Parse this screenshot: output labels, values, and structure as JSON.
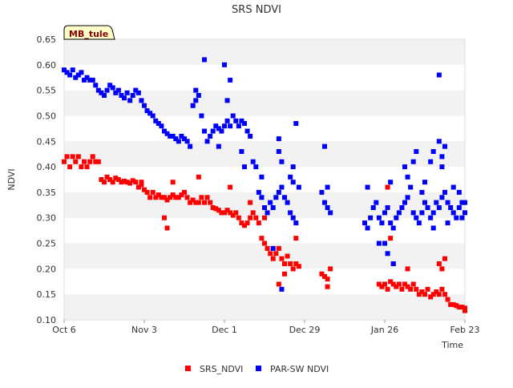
{
  "chart_data": {
    "type": "scatter",
    "title": "SRS NDVI",
    "badge": "MB_tule",
    "xlabel": "Time",
    "ylabel": "NDVI",
    "x_unit": "days since Oct 6",
    "xlim": [
      0,
      140
    ],
    "ylim": [
      0.1,
      0.65
    ],
    "yticks": [
      0.1,
      0.15,
      0.2,
      0.25,
      0.3,
      0.35,
      0.4,
      0.45,
      0.5,
      0.55,
      0.6,
      0.65
    ],
    "xticks": [
      {
        "value": 0,
        "label": "Oct 6"
      },
      {
        "value": 28,
        "label": "Nov 3"
      },
      {
        "value": 56,
        "label": "Dec 1"
      },
      {
        "value": 84,
        "label": "Dec 29"
      },
      {
        "value": 112,
        "label": "Jan 26"
      },
      {
        "value": 140,
        "label": "Feb 23"
      }
    ],
    "grid": "alternating horizontal bands",
    "legend_position": "bottom-center",
    "series": [
      {
        "name": "SRS_NDVI",
        "color": "#ff0000",
        "points": [
          [
            0,
            0.41
          ],
          [
            1,
            0.42
          ],
          [
            2,
            0.4
          ],
          [
            3,
            0.42
          ],
          [
            4,
            0.41
          ],
          [
            5,
            0.42
          ],
          [
            6,
            0.4
          ],
          [
            7,
            0.41
          ],
          [
            8,
            0.4
          ],
          [
            9,
            0.41
          ],
          [
            10,
            0.42
          ],
          [
            11,
            0.41
          ],
          [
            12,
            0.41
          ],
          [
            13,
            0.375
          ],
          [
            14,
            0.37
          ],
          [
            15,
            0.38
          ],
          [
            16,
            0.375
          ],
          [
            17,
            0.37
          ],
          [
            18,
            0.378
          ],
          [
            19,
            0.375
          ],
          [
            20,
            0.37
          ],
          [
            21,
            0.372
          ],
          [
            22,
            0.37
          ],
          [
            23,
            0.368
          ],
          [
            24,
            0.373
          ],
          [
            25,
            0.37
          ],
          [
            26,
            0.36
          ],
          [
            27,
            0.365
          ],
          [
            28,
            0.355
          ],
          [
            29,
            0.35
          ],
          [
            30,
            0.34
          ],
          [
            31,
            0.35
          ],
          [
            32,
            0.34
          ],
          [
            33,
            0.345
          ],
          [
            34,
            0.34
          ],
          [
            35,
            0.34
          ],
          [
            36,
            0.335
          ],
          [
            37,
            0.34
          ],
          [
            38,
            0.345
          ],
          [
            39,
            0.34
          ],
          [
            40,
            0.34
          ],
          [
            41,
            0.345
          ],
          [
            42,
            0.35
          ],
          [
            43,
            0.34
          ],
          [
            44,
            0.33
          ],
          [
            45,
            0.335
          ],
          [
            46,
            0.33
          ],
          [
            47,
            0.33
          ],
          [
            48,
            0.34
          ],
          [
            49,
            0.33
          ],
          [
            50,
            0.34
          ],
          [
            51,
            0.33
          ],
          [
            52,
            0.32
          ],
          [
            53,
            0.318
          ],
          [
            54,
            0.315
          ],
          [
            55,
            0.31
          ],
          [
            56,
            0.31
          ],
          [
            57,
            0.315
          ],
          [
            58,
            0.31
          ],
          [
            59,
            0.305
          ],
          [
            60,
            0.31
          ],
          [
            61,
            0.3
          ],
          [
            62,
            0.29
          ],
          [
            63,
            0.285
          ],
          [
            64,
            0.29
          ],
          [
            65,
            0.3
          ],
          [
            66,
            0.31
          ],
          [
            67,
            0.3
          ],
          [
            68,
            0.29
          ],
          [
            69,
            0.26
          ],
          [
            70,
            0.25
          ],
          [
            71,
            0.24
          ],
          [
            72,
            0.23
          ],
          [
            73,
            0.22
          ],
          [
            74,
            0.23
          ],
          [
            75,
            0.24
          ],
          [
            76,
            0.22
          ],
          [
            77,
            0.21
          ],
          [
            78,
            0.225
          ],
          [
            79,
            0.21
          ],
          [
            80,
            0.2
          ],
          [
            81,
            0.21
          ],
          [
            82,
            0.205
          ],
          [
            90,
            0.19
          ],
          [
            91,
            0.185
          ],
          [
            92,
            0.18
          ],
          [
            93,
            0.2
          ],
          [
            110,
            0.17
          ],
          [
            111,
            0.165
          ],
          [
            112,
            0.17
          ],
          [
            113,
            0.16
          ],
          [
            114,
            0.175
          ],
          [
            115,
            0.17
          ],
          [
            116,
            0.165
          ],
          [
            117,
            0.17
          ],
          [
            118,
            0.16
          ],
          [
            119,
            0.17
          ],
          [
            120,
            0.165
          ],
          [
            121,
            0.16
          ],
          [
            122,
            0.17
          ],
          [
            123,
            0.16
          ],
          [
            124,
            0.15
          ],
          [
            125,
            0.155
          ],
          [
            126,
            0.15
          ],
          [
            127,
            0.16
          ],
          [
            128,
            0.145
          ],
          [
            129,
            0.15
          ],
          [
            130,
            0.155
          ],
          [
            131,
            0.15
          ],
          [
            132,
            0.16
          ],
          [
            133,
            0.15
          ],
          [
            134,
            0.14
          ],
          [
            135,
            0.13
          ],
          [
            136,
            0.13
          ],
          [
            137,
            0.128
          ],
          [
            138,
            0.125
          ],
          [
            139,
            0.125
          ],
          [
            140,
            0.123
          ],
          [
            47,
            0.38
          ],
          [
            27,
            0.37
          ],
          [
            58,
            0.36
          ],
          [
            70,
            0.3
          ],
          [
            114,
            0.26
          ],
          [
            115,
            0.21
          ],
          [
            113,
            0.36
          ],
          [
            65,
            0.33
          ],
          [
            38,
            0.37
          ],
          [
            120,
            0.2
          ],
          [
            132,
            0.2
          ],
          [
            133,
            0.22
          ],
          [
            131,
            0.21
          ],
          [
            92,
            0.165
          ],
          [
            81,
            0.26
          ],
          [
            36,
            0.28
          ],
          [
            35,
            0.3
          ],
          [
            77,
            0.19
          ],
          [
            75,
            0.17
          ],
          [
            140,
            0.118
          ]
        ]
      },
      {
        "name": "PAR-SW NDVI",
        "color": "#0000ff",
        "points": [
          [
            0,
            0.59
          ],
          [
            1,
            0.585
          ],
          [
            2,
            0.58
          ],
          [
            3,
            0.59
          ],
          [
            4,
            0.575
          ],
          [
            5,
            0.58
          ],
          [
            6,
            0.585
          ],
          [
            7,
            0.57
          ],
          [
            8,
            0.575
          ],
          [
            9,
            0.57
          ],
          [
            10,
            0.57
          ],
          [
            11,
            0.56
          ],
          [
            12,
            0.55
          ],
          [
            13,
            0.545
          ],
          [
            14,
            0.54
          ],
          [
            15,
            0.55
          ],
          [
            16,
            0.56
          ],
          [
            17,
            0.555
          ],
          [
            18,
            0.545
          ],
          [
            19,
            0.55
          ],
          [
            20,
            0.54
          ],
          [
            21,
            0.535
          ],
          [
            22,
            0.545
          ],
          [
            23,
            0.53
          ],
          [
            24,
            0.54
          ],
          [
            25,
            0.55
          ],
          [
            26,
            0.545
          ],
          [
            27,
            0.53
          ],
          [
            28,
            0.52
          ],
          [
            29,
            0.51
          ],
          [
            30,
            0.505
          ],
          [
            31,
            0.5
          ],
          [
            32,
            0.49
          ],
          [
            33,
            0.485
          ],
          [
            34,
            0.48
          ],
          [
            35,
            0.47
          ],
          [
            36,
            0.465
          ],
          [
            37,
            0.46
          ],
          [
            38,
            0.46
          ],
          [
            39,
            0.455
          ],
          [
            40,
            0.45
          ],
          [
            41,
            0.46
          ],
          [
            42,
            0.455
          ],
          [
            43,
            0.45
          ],
          [
            44,
            0.44
          ],
          [
            45,
            0.52
          ],
          [
            46,
            0.53
          ],
          [
            47,
            0.54
          ],
          [
            48,
            0.5
          ],
          [
            49,
            0.47
          ],
          [
            50,
            0.45
          ],
          [
            51,
            0.46
          ],
          [
            52,
            0.47
          ],
          [
            53,
            0.48
          ],
          [
            54,
            0.475
          ],
          [
            55,
            0.47
          ],
          [
            56,
            0.48
          ],
          [
            57,
            0.49
          ],
          [
            58,
            0.48
          ],
          [
            59,
            0.5
          ],
          [
            60,
            0.49
          ],
          [
            61,
            0.48
          ],
          [
            62,
            0.49
          ],
          [
            63,
            0.485
          ],
          [
            64,
            0.47
          ],
          [
            65,
            0.46
          ],
          [
            66,
            0.41
          ],
          [
            67,
            0.4
          ],
          [
            68,
            0.35
          ],
          [
            69,
            0.34
          ],
          [
            70,
            0.32
          ],
          [
            71,
            0.31
          ],
          [
            72,
            0.33
          ],
          [
            73,
            0.32
          ],
          [
            74,
            0.34
          ],
          [
            75,
            0.35
          ],
          [
            76,
            0.36
          ],
          [
            77,
            0.34
          ],
          [
            78,
            0.33
          ],
          [
            79,
            0.31
          ],
          [
            80,
            0.3
          ],
          [
            81,
            0.29
          ],
          [
            82,
            0.36
          ],
          [
            90,
            0.35
          ],
          [
            91,
            0.33
          ],
          [
            92,
            0.32
          ],
          [
            93,
            0.31
          ],
          [
            105,
            0.29
          ],
          [
            106,
            0.28
          ],
          [
            107,
            0.3
          ],
          [
            108,
            0.32
          ],
          [
            109,
            0.33
          ],
          [
            110,
            0.3
          ],
          [
            111,
            0.29
          ],
          [
            112,
            0.31
          ],
          [
            113,
            0.32
          ],
          [
            114,
            0.29
          ],
          [
            115,
            0.28
          ],
          [
            116,
            0.3
          ],
          [
            117,
            0.31
          ],
          [
            118,
            0.32
          ],
          [
            119,
            0.33
          ],
          [
            120,
            0.34
          ],
          [
            121,
            0.36
          ],
          [
            122,
            0.31
          ],
          [
            123,
            0.3
          ],
          [
            124,
            0.29
          ],
          [
            125,
            0.31
          ],
          [
            126,
            0.33
          ],
          [
            127,
            0.32
          ],
          [
            128,
            0.3
          ],
          [
            129,
            0.31
          ],
          [
            130,
            0.33
          ],
          [
            131,
            0.32
          ],
          [
            132,
            0.34
          ],
          [
            133,
            0.35
          ],
          [
            134,
            0.33
          ],
          [
            135,
            0.32
          ],
          [
            136,
            0.31
          ],
          [
            137,
            0.3
          ],
          [
            138,
            0.32
          ],
          [
            139,
            0.33
          ],
          [
            140,
            0.31
          ],
          [
            49,
            0.61
          ],
          [
            56,
            0.6
          ],
          [
            58,
            0.57
          ],
          [
            46,
            0.55
          ],
          [
            57,
            0.53
          ],
          [
            54,
            0.44
          ],
          [
            62,
            0.43
          ],
          [
            63,
            0.4
          ],
          [
            75,
            0.43
          ],
          [
            76,
            0.41
          ],
          [
            75,
            0.455
          ],
          [
            80,
            0.37
          ],
          [
            79,
            0.38
          ],
          [
            80,
            0.4
          ],
          [
            81,
            0.485
          ],
          [
            76,
            0.16
          ],
          [
            73,
            0.24
          ],
          [
            69,
            0.38
          ],
          [
            91,
            0.44
          ],
          [
            92,
            0.36
          ],
          [
            112,
            0.25
          ],
          [
            113,
            0.23
          ],
          [
            114,
            0.37
          ],
          [
            119,
            0.4
          ],
          [
            122,
            0.41
          ],
          [
            123,
            0.43
          ],
          [
            131,
            0.58
          ],
          [
            131,
            0.45
          ],
          [
            132,
            0.42
          ],
          [
            132,
            0.4
          ],
          [
            133,
            0.44
          ],
          [
            129,
            0.43
          ],
          [
            128,
            0.41
          ],
          [
            106,
            0.36
          ],
          [
            110,
            0.25
          ],
          [
            115,
            0.21
          ],
          [
            120,
            0.38
          ],
          [
            125,
            0.35
          ],
          [
            126,
            0.37
          ],
          [
            129,
            0.28
          ],
          [
            134,
            0.29
          ],
          [
            136,
            0.36
          ],
          [
            138,
            0.35
          ],
          [
            139,
            0.3
          ],
          [
            140,
            0.33
          ]
        ]
      }
    ]
  }
}
